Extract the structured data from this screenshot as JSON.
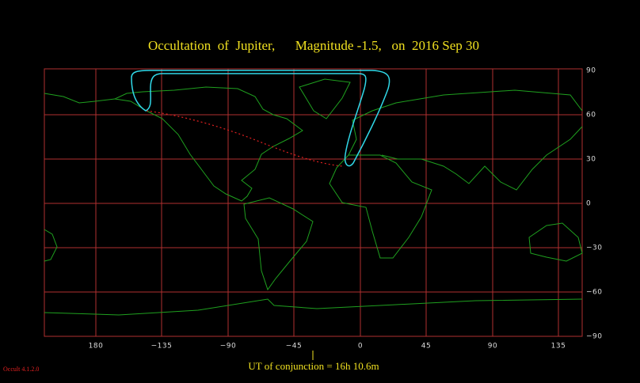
{
  "title": "Occultation  of  Jupiter,      Magnitude -1.5,   on  2016 Sep 30",
  "lon_labels": [
    "180",
    "−135",
    "−90",
    "−45",
    "0",
    "45",
    "90",
    "135"
  ],
  "lat_labels": [
    "90",
    "60",
    "30",
    "0",
    "−30",
    "−60",
    "−90"
  ],
  "footer": "UT of conjunction = 16h 10.6m",
  "version": "Occult 4.1.2.0"
}
